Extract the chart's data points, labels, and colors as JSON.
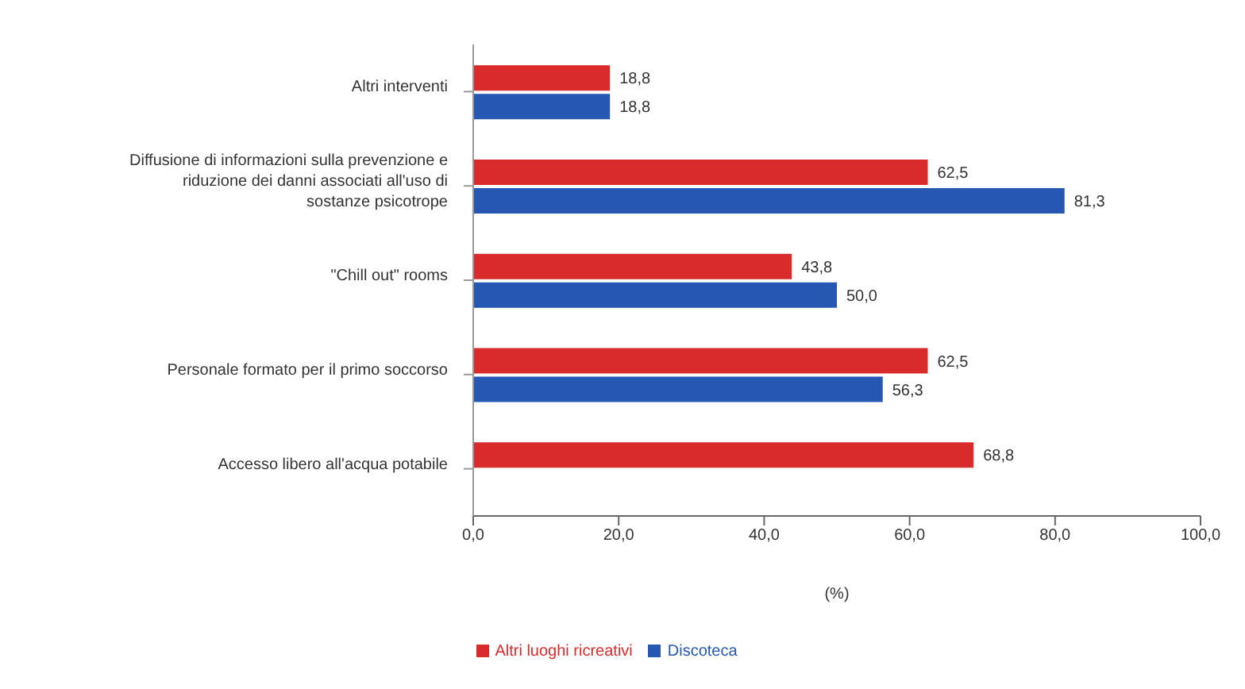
{
  "chart_data": {
    "type": "bar",
    "orientation": "horizontal",
    "xlabel": "(%)",
    "categories": [
      "Altri interventi",
      "Diffusione di informazioni sulla prevenzione e riduzione dei danni associati all'uso di sostanze psicotrope",
      "\"Chill out\" rooms",
      "Personale formato per il primo soccorso",
      "Accesso libero all'acqua potabile"
    ],
    "series": [
      {
        "name": "Altri luoghi ricreativi",
        "color": "#d92a2c",
        "values": [
          18.8,
          62.5,
          43.8,
          62.5,
          68.8
        ],
        "value_labels": [
          "18,8",
          "62,5",
          "43,8",
          "62,5",
          "68,8"
        ]
      },
      {
        "name": "Discoteca",
        "color": "#2657b3",
        "values": [
          18.8,
          81.3,
          50.0,
          56.3,
          null
        ],
        "value_labels": [
          "18,8",
          "81,3",
          "50,0",
          "56,3",
          null
        ]
      }
    ],
    "xlim": [
      0,
      100
    ],
    "xticks": [
      {
        "value": 0,
        "label": "0,0"
      },
      {
        "value": 20,
        "label": "20,0"
      },
      {
        "value": 40,
        "label": "40,0"
      },
      {
        "value": 60,
        "label": "60,0"
      },
      {
        "value": 80,
        "label": "80,0"
      },
      {
        "value": 100,
        "label": "100,0"
      }
    ],
    "grid": false,
    "legend": "bottom"
  }
}
